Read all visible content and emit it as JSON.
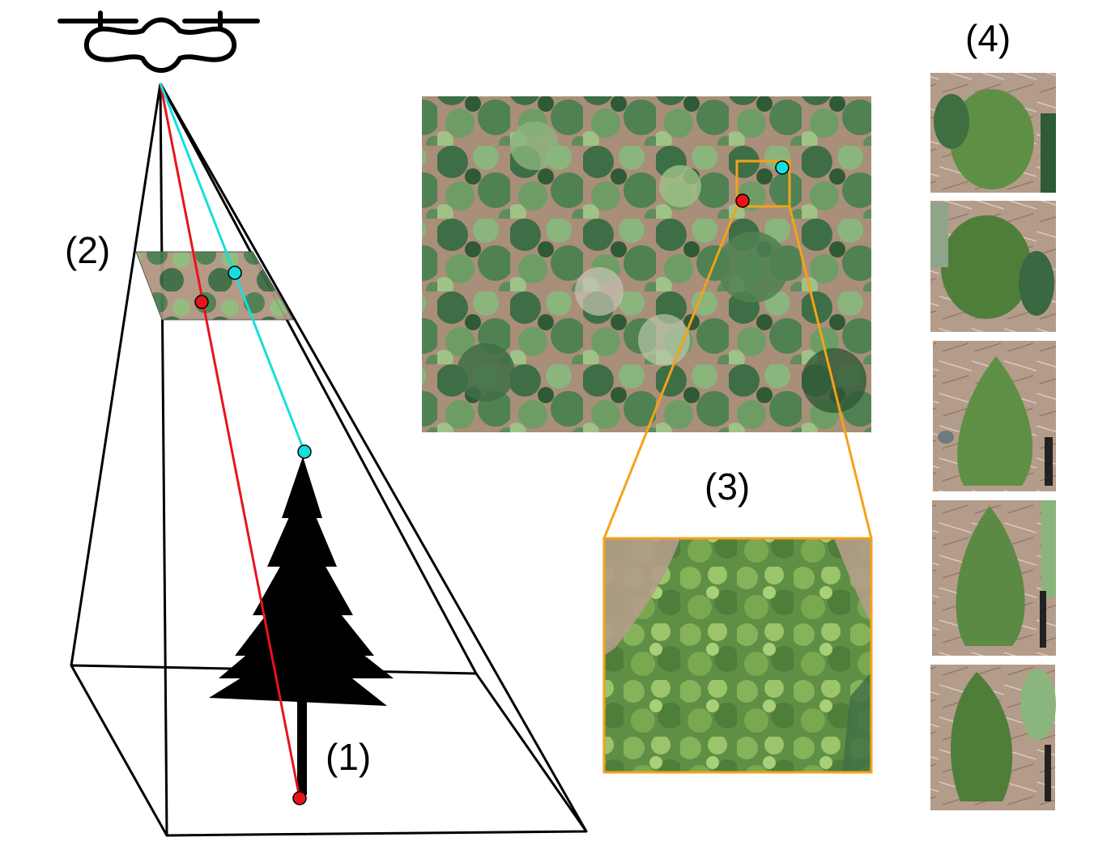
{
  "labels": {
    "tree": "(1)",
    "image_plane": "(2)",
    "crop": "(3)",
    "views": "(4)"
  },
  "colors": {
    "ray_base": "#e8141b",
    "ray_top": "#16dede",
    "crop_box": "#f4a21a",
    "frustum": "#000000",
    "canopy_dark": "#2f5a36",
    "canopy_mid": "#5e8c5a",
    "canopy_light": "#9fc287",
    "ground": "#b3957e"
  },
  "icons": {
    "drone": "drone-icon",
    "tree": "conifer-tree-icon"
  },
  "tree_views_count": 5
}
